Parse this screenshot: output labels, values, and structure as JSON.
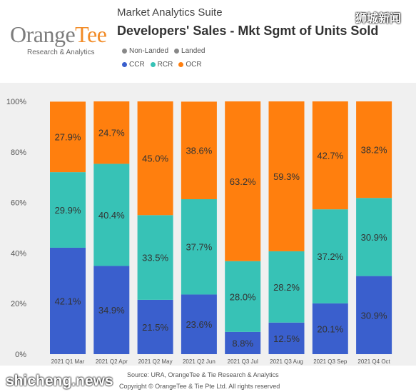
{
  "header": {
    "logo_text_a": "Orange",
    "logo_text_b": "Tee",
    "logo_subtitle": "Research & Analytics",
    "suite": "Market Analytics Suite",
    "title": "Developers' Sales - Mkt Sgmt of Units Sold",
    "watermark": "狮城新闻"
  },
  "legend": {
    "row1": [
      {
        "label": "Non-Landed",
        "color": "#888888"
      },
      {
        "label": "Landed",
        "color": "#888888"
      }
    ],
    "row2": [
      {
        "label": "CCR",
        "color": "#3a5fcd"
      },
      {
        "label": "RCR",
        "color": "#37c2b6"
      },
      {
        "label": "OCR",
        "color": "#ff7f0e"
      }
    ]
  },
  "chart_data": {
    "type": "bar",
    "stacked": true,
    "categories": [
      "2021 Q1 Mar",
      "2021 Q2 Apr",
      "2021 Q2 May",
      "2021 Q2 Jun",
      "2021 Q3 Jul",
      "2021 Q3 Aug",
      "2021 Q3 Sep",
      "2021 Q4 Oct"
    ],
    "series": [
      {
        "name": "CCR",
        "color": "#3a5fcd",
        "values": [
          42.1,
          34.9,
          21.5,
          23.6,
          8.8,
          12.5,
          20.1,
          30.9
        ]
      },
      {
        "name": "RCR",
        "color": "#37c2b6",
        "values": [
          29.9,
          40.4,
          33.5,
          37.7,
          28.0,
          28.2,
          37.2,
          30.9
        ]
      },
      {
        "name": "OCR",
        "color": "#ff7f0e",
        "values": [
          27.9,
          24.7,
          45.0,
          38.6,
          63.2,
          59.3,
          42.7,
          38.2
        ]
      }
    ],
    "labels": [
      [
        "42.1%",
        "34.9%",
        "21.5%",
        "23.6%",
        "8.8%",
        "12.5%",
        "20.1%",
        "30.9%"
      ],
      [
        "29.9%",
        "40.4%",
        "33.5%",
        "37.7%",
        "28.0%",
        "28.2%",
        "37.2%",
        "30.9%"
      ],
      [
        "27.9%",
        "24.7%",
        "45.0%",
        "38.6%",
        "63.2%",
        "59.3%",
        "42.7%",
        "38.2%"
      ]
    ],
    "yticks": [
      "0%",
      "20%",
      "40%",
      "60%",
      "80%",
      "100%"
    ],
    "ylim": [
      0,
      100
    ],
    "grid": false
  },
  "footer": {
    "source": "Source: URA, OrangeTee & Tie Research & Analytics",
    "copyright": "Copyright © OrangeTee & Tie Pte Ltd. All rights reserved",
    "watermark": "shicheng.news"
  }
}
